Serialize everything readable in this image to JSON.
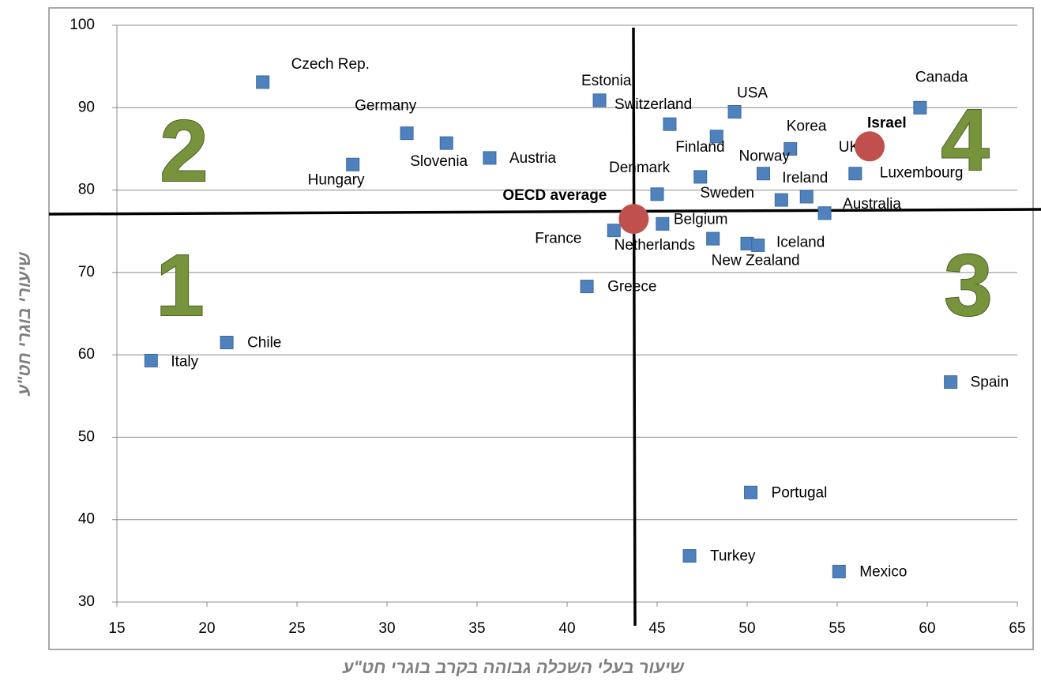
{
  "chart_data": {
    "type": "scatter",
    "x_label": "שיעור בעלי השכלה גבוהה בקרב בוגרי חט\"ע",
    "y_label": "שיעורי בוגרי חט\"ע",
    "annotations": [
      "1",
      "2",
      "3",
      "4"
    ],
    "xlim": [
      15,
      65
    ],
    "xticks": [
      15,
      20,
      25,
      30,
      35,
      40,
      45,
      50,
      55,
      60,
      65
    ],
    "ylim": [
      30,
      100
    ],
    "yticks": [
      30,
      40,
      50,
      60,
      70,
      80,
      90,
      100
    ],
    "grid": true,
    "series": [
      {
        "color": "#4f81bd",
        "marker": "square",
        "labels": [
          "Czech Rep.",
          "Germany",
          "Slovenia",
          "Austria",
          "Hungary",
          "Estonia",
          "Switzerland",
          "USA",
          "Finland",
          "Denmark",
          "UK",
          "Korea",
          "Norway",
          "Ireland",
          "Sweden",
          "Luxembourg",
          "Canada",
          "Australia",
          "Belgium",
          "France",
          "Netherlands",
          "Iceland",
          "New Zealand",
          "Greece",
          "Chile",
          "Italy",
          "Spain",
          "Portugal",
          "Turkey",
          "Mexico"
        ],
        "x": [
          23.1,
          31.1,
          33.3,
          35.7,
          28.1,
          41.8,
          45.7,
          49.3,
          48.3,
          45.0,
          47.4,
          52.4,
          50.9,
          53.3,
          51.9,
          56.0,
          59.6,
          54.3,
          45.3,
          42.6,
          48.1,
          50.0,
          50.6,
          41.1,
          21.1,
          16.9,
          61.3,
          50.2,
          46.8,
          55.1
        ],
        "values": [
          93.1,
          86.9,
          85.7,
          83.9,
          83.1,
          90.9,
          88.0,
          89.5,
          86.5,
          79.5,
          81.6,
          85.0,
          82.0,
          79.2,
          78.8,
          82.0,
          90.0,
          77.2,
          75.9,
          75.1,
          74.1,
          73.5,
          73.3,
          68.3,
          61.5,
          59.3,
          56.7,
          43.3,
          35.6,
          33.7
        ]
      },
      {
        "color": "#c0504d",
        "marker": "circle",
        "labels": [
          "Israel",
          "OECD average"
        ],
        "x": [
          56.8,
          43.7
        ],
        "values": [
          85.3,
          76.5
        ]
      }
    ]
  }
}
